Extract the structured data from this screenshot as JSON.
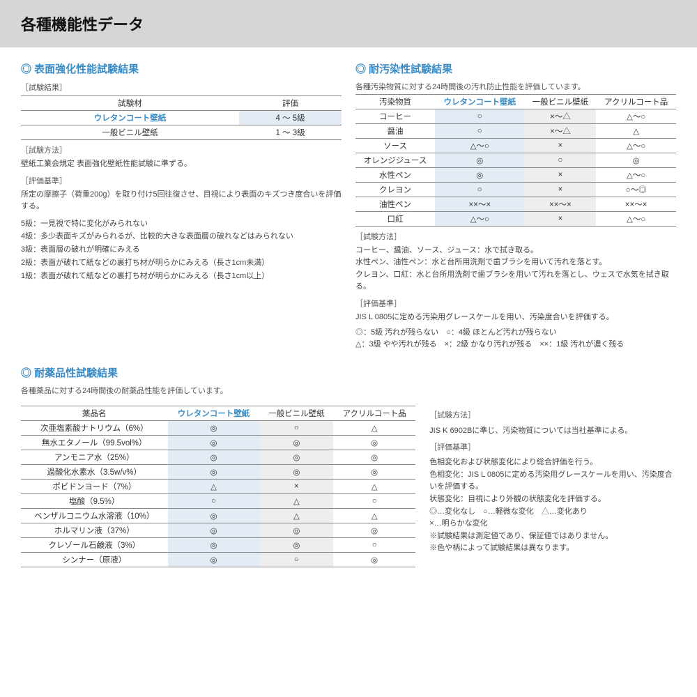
{
  "header": "各種機能性データ",
  "s1": {
    "title": "表面強化性能試験結果",
    "label_result": "［試験結果］",
    "cols": [
      "試験材",
      "評価"
    ],
    "rows": [
      {
        "name": "ウレタンコート壁紙",
        "val": "4 〜 5級",
        "hl": true
      },
      {
        "name": "一般ビニル壁紙",
        "val": "1 〜 3級"
      }
    ],
    "label_method": "［試験方法］",
    "method": "壁紙工業会規定 表面強化壁紙性能試験に準ずる。",
    "label_criteria": "［評価基準］",
    "criteria": "所定の摩擦子（荷重200g）を取り付け5回往復させ、目視により表面のキズつき度合いを評価する。",
    "grades": [
      "5級：一見視で特に変化がみられない",
      "4級：多少表面キズがみられるが、比較的大きな表面層の破れなどはみられない",
      "3級：表面層の破れが明確にみえる",
      "2級：表面が破れて紙などの裏打ち材が明らかにみえる（長さ1cm未満）",
      "1級：表面が破れて紙などの裏打ち材が明らかにみえる（長さ1cm以上）"
    ]
  },
  "s2": {
    "title": "耐汚染性試験結果",
    "intro": "各種汚染物質に対する24時間後の汚れ防止性能を評価しています。",
    "cols": [
      "汚染物質",
      "ウレタンコート壁紙",
      "一般ビニル壁紙",
      "アクリルコート品"
    ],
    "rows": [
      [
        "コーヒー",
        "○",
        "×〜△",
        "△〜○"
      ],
      [
        "醤油",
        "○",
        "×〜△",
        "△"
      ],
      [
        "ソース",
        "△〜○",
        "×",
        "△〜○"
      ],
      [
        "オレンジジュース",
        "◎",
        "○",
        "◎"
      ],
      [
        "水性ペン",
        "◎",
        "×",
        "△〜○"
      ],
      [
        "クレヨン",
        "○",
        "×",
        "○〜◎"
      ],
      [
        "油性ペン",
        "××〜×",
        "××〜×",
        "××〜×"
      ],
      [
        "口紅",
        "△〜○",
        "×",
        "△〜○"
      ]
    ],
    "label_method": "［試験方法］",
    "method": "コーヒー、醤油、ソース、ジュース：水で拭き取る。\n水性ペン、油性ペン：水と台所用洗剤で歯ブラシを用いて汚れを落とす。\nクレヨン、口紅：水と台所用洗剤で歯ブラシを用いて汚れを落とし、ウェスで水気を拭き取る。",
    "label_criteria": "［評価基準］",
    "criteria": "JIS L 0805に定める汚染用グレースケールを用い、汚染度合いを評価する。",
    "legend": "◎：5級 汚れが残らない　○：4級 ほとんど汚れが残らない\n△：3級 やや汚れが残る　×：2級 かなり汚れが残る　××：1級 汚れが濃く残る"
  },
  "s3": {
    "title": "耐薬品性試験結果",
    "intro": "各種薬品に対する24時間後の耐薬品性能を評価しています。",
    "cols": [
      "薬品名",
      "ウレタンコート壁紙",
      "一般ビニル壁紙",
      "アクリルコート品"
    ],
    "rows": [
      [
        "次亜塩素酸ナトリウム（6%）",
        "◎",
        "○",
        "△"
      ],
      [
        "無水エタノール（99.5vol%）",
        "◎",
        "◎",
        "◎"
      ],
      [
        "アンモニア水（25%）",
        "◎",
        "◎",
        "◎"
      ],
      [
        "過酸化水素水（3.5w/v%）",
        "◎",
        "◎",
        "◎"
      ],
      [
        "ポビドンヨード（7%）",
        "△",
        "×",
        "△"
      ],
      [
        "塩酸（9.5%）",
        "○",
        "△",
        "○"
      ],
      [
        "ベンザルコニウム水溶液（10%）",
        "◎",
        "△",
        "△"
      ],
      [
        "ホルマリン液（37%）",
        "◎",
        "◎",
        "◎"
      ],
      [
        "クレゾール石鹸液（3%）",
        "◎",
        "◎",
        "○"
      ],
      [
        "シンナー（原液）",
        "◎",
        "○",
        "◎"
      ]
    ],
    "label_method": "［試験方法］",
    "method": "JIS K 6902Bに準じ、汚染物質については当社基準による。",
    "label_criteria": "［評価基準］",
    "criteria": "色相変化および状態変化により総合評価を行う。\n色相変化：JIS L 0805に定める汚染用グレースケールを用い、汚染度合いを評価する。\n状態変化：目視により外観の状態変化を評価する。",
    "legend": "◎…変化なし　○…軽微な変化　△…変化あり\n×…明らかな変化",
    "note1": "※試験結果は測定値であり、保証値ではありません。",
    "note2": "※色や柄によって試験結果は異なります。"
  }
}
